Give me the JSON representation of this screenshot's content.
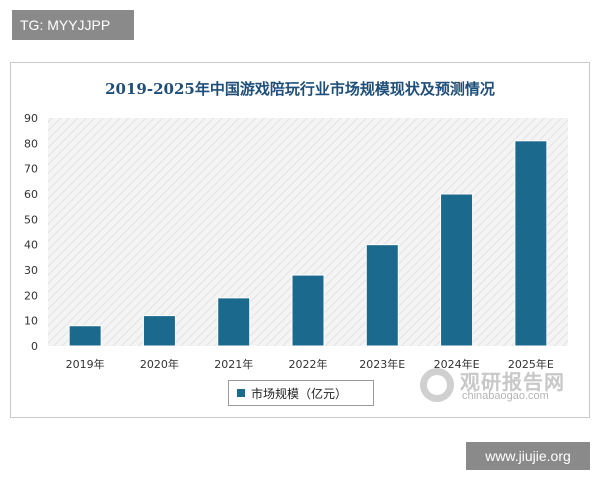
{
  "watermark_top": "TG: MYYJJPP",
  "watermark_bottom": "www.jiujie.org",
  "logo": {
    "title": "观研报告网",
    "url": "chinabaogao.com",
    "icon": "globe-logo-icon"
  },
  "colors": {
    "bar": "#1b6a8d",
    "title": "#1f4e79",
    "hatch": "#e4e4e4"
  },
  "chart_data": {
    "type": "bar",
    "title": "2019-2025年中国游戏陪玩行业市场规模现状及预测情况",
    "categories": [
      "2019年",
      "2020年",
      "2021年",
      "2022年",
      "2023年E",
      "2024年E",
      "2025年E"
    ],
    "series": [
      {
        "name": "市场规模（亿元）",
        "values": [
          8,
          12,
          19,
          28,
          40,
          60,
          81
        ]
      }
    ],
    "ylim": [
      0,
      90
    ],
    "yticks": [
      0,
      10,
      20,
      30,
      40,
      50,
      60,
      70,
      80,
      90
    ],
    "xlabel": "",
    "ylabel": "",
    "grid": false,
    "legend_position": "bottom"
  }
}
